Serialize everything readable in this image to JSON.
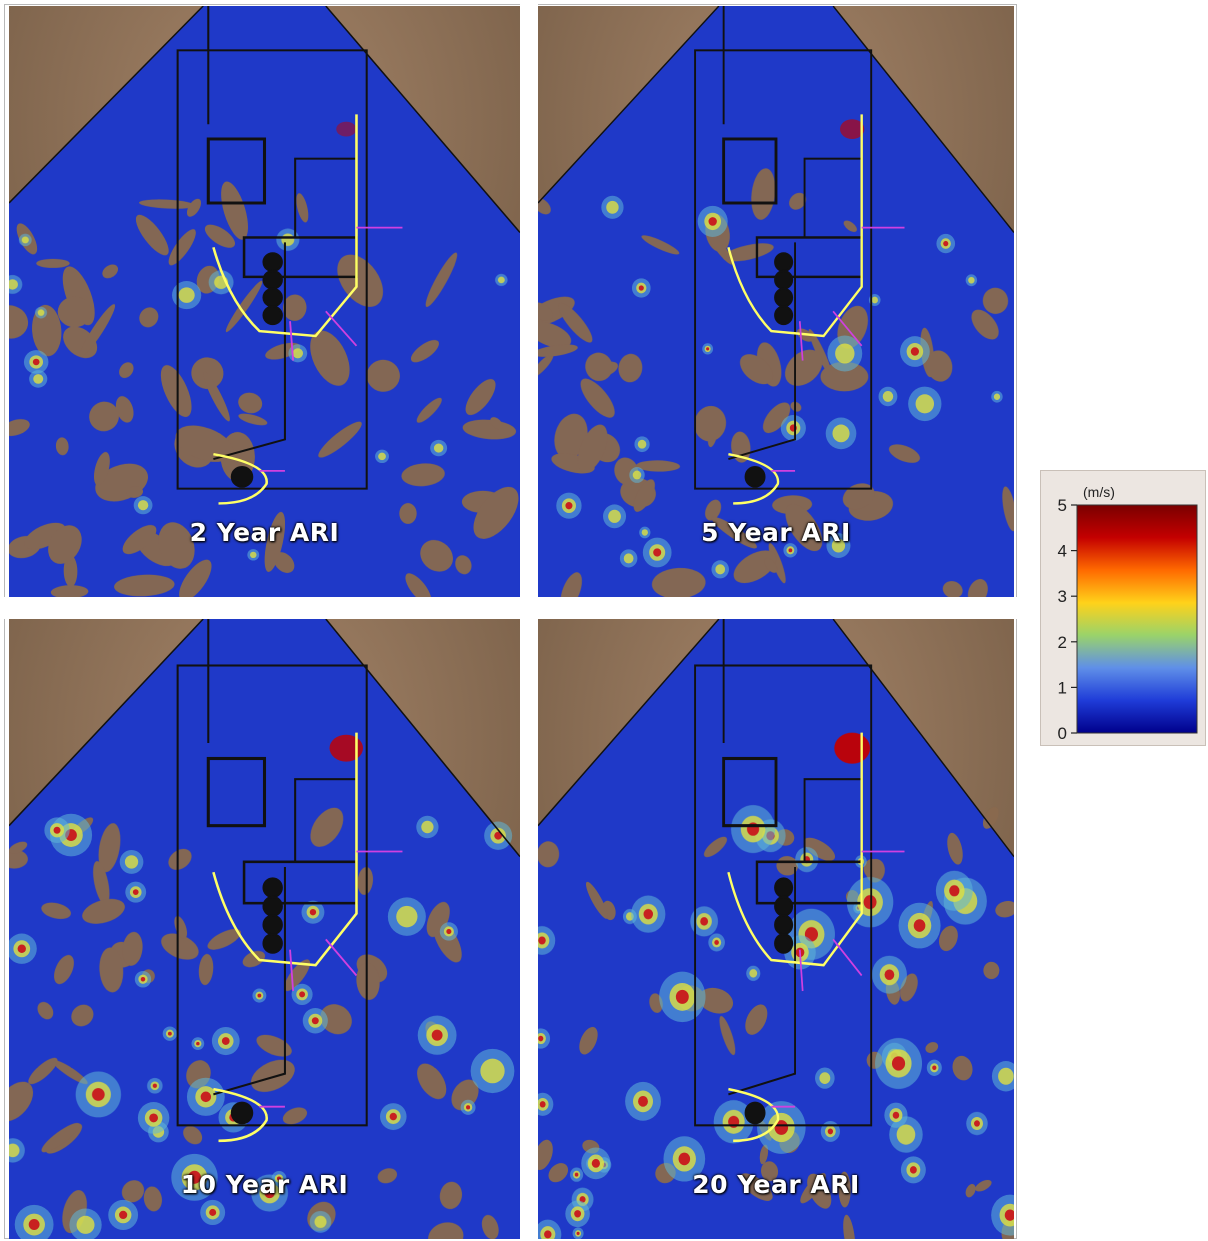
{
  "panels": [
    {
      "id": "ari-2",
      "label": "2 Year ARI",
      "intensity": 0.15
    },
    {
      "id": "ari-5",
      "label": "5 Year ARI",
      "intensity": 0.4
    },
    {
      "id": "ari-10",
      "label": "10 Year ARI",
      "intensity": 0.7
    },
    {
      "id": "ari-20",
      "label": "20 Year ARI",
      "intensity": 0.9
    }
  ],
  "legend": {
    "unit": "(m/s)",
    "ticks": [
      "0",
      "1",
      "2",
      "3",
      "4",
      "5"
    ],
    "min": 0,
    "max": 5,
    "colors": [
      "#00008b",
      "#1f3cd8",
      "#5f8fe8",
      "#9ad36a",
      "#ffd21a",
      "#ff6a00",
      "#c40000",
      "#7a0000"
    ]
  },
  "colors": {
    "terrain": "#8a6a4e",
    "flood": "#1f39c8",
    "site_outline": "#111111",
    "bund": "#ffff66",
    "channel": "#d040e0"
  }
}
